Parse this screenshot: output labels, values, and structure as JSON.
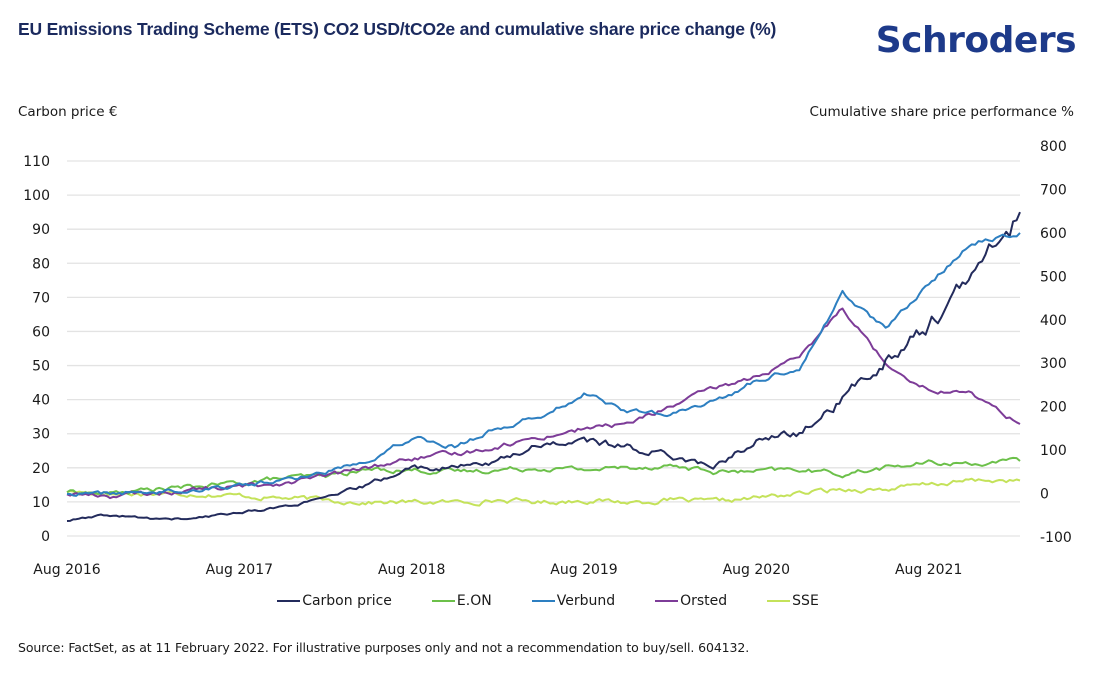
{
  "header": {
    "title": "EU Emissions Trading Scheme (ETS) CO2 USD/tCO2e and cumulative share price change (%)",
    "logo": "Schroders"
  },
  "footer": {
    "source": "Source: FactSet, as at 11 February 2022. For illustrative purposes only and not a recommendation to buy/sell. 604132."
  },
  "colors": {
    "brand": "#1d3a8a",
    "title": "#1b2a5e",
    "gridline": "#e3e3e3"
  },
  "chart_data": {
    "type": "line",
    "title": "EU Emissions Trading Scheme (ETS) CO2 USD/tCO2e and cumulative share price change (%)",
    "ylabel_left": "Carbon price €",
    "ylabel_right": "Cumulative share price performance %",
    "xlabel": "",
    "grid": true,
    "legend_position": "bottom",
    "ylim_left": [
      0,
      110
    ],
    "yticks_left": [
      0,
      10,
      20,
      30,
      40,
      50,
      60,
      70,
      80,
      90,
      100,
      110
    ],
    "ylim_right": [
      -100,
      800
    ],
    "yticks_right": [
      -100,
      0,
      100,
      200,
      300,
      400,
      500,
      600,
      700,
      800
    ],
    "xtick_labels": [
      "Aug 2016",
      "Aug 2017",
      "Aug 2018",
      "Aug 2019",
      "Aug 2020",
      "Aug 2021"
    ],
    "x": [
      "Aug 2016",
      "Nov 2016",
      "Feb 2017",
      "May 2017",
      "Aug 2017",
      "Nov 2017",
      "Feb 2018",
      "May 2018",
      "Aug 2018",
      "Nov 2018",
      "Feb 2019",
      "May 2019",
      "Aug 2019",
      "Nov 2019",
      "Feb 2020",
      "May 2020",
      "Aug 2020",
      "Nov 2020",
      "Feb 2021",
      "May 2021",
      "Aug 2021",
      "Nov 2021",
      "Feb 2022"
    ],
    "x_numeric_years": [
      2016.58,
      2016.83,
      2017.08,
      2017.33,
      2017.58,
      2017.83,
      2018.08,
      2018.33,
      2018.58,
      2018.83,
      2019.08,
      2019.33,
      2019.58,
      2019.83,
      2020.08,
      2020.33,
      2020.58,
      2020.83,
      2021.08,
      2021.33,
      2021.58,
      2021.83,
      2022.11
    ],
    "series": [
      {
        "name": "Carbon price",
        "axis": "left",
        "color": "#232b5c",
        "values": [
          4.5,
          6,
          5,
          5,
          7,
          8.5,
          11,
          15,
          20,
          20,
          22,
          27,
          28,
          26,
          24,
          20,
          28,
          30,
          40,
          52,
          62,
          75,
          95
        ]
      },
      {
        "name": "E.ON",
        "axis": "right",
        "color": "#6cc04a",
        "values": [
          5,
          0,
          10,
          15,
          25,
          35,
          40,
          55,
          55,
          50,
          55,
          60,
          55,
          60,
          65,
          50,
          50,
          55,
          45,
          60,
          70,
          70,
          75
        ]
      },
      {
        "name": "Verbund",
        "axis": "right",
        "color": "#2d7fc1",
        "values": [
          0,
          0,
          5,
          10,
          20,
          30,
          50,
          80,
          130,
          110,
          150,
          180,
          230,
          190,
          180,
          210,
          260,
          290,
          460,
          380,
          480,
          580,
          600
        ]
      },
      {
        "name": "Orsted",
        "axis": "right",
        "color": "#7d3c98",
        "values": [
          0,
          -5,
          0,
          10,
          15,
          25,
          40,
          60,
          80,
          90,
          110,
          130,
          150,
          160,
          200,
          240,
          270,
          310,
          430,
          300,
          240,
          230,
          160
        ]
      },
      {
        "name": "SSE",
        "axis": "right",
        "color": "#c4e25a",
        "values": [
          5,
          0,
          0,
          0,
          -5,
          -10,
          -15,
          -20,
          -20,
          -20,
          -15,
          -20,
          -15,
          -20,
          -15,
          -20,
          -10,
          0,
          10,
          10,
          20,
          30,
          30
        ]
      }
    ]
  }
}
